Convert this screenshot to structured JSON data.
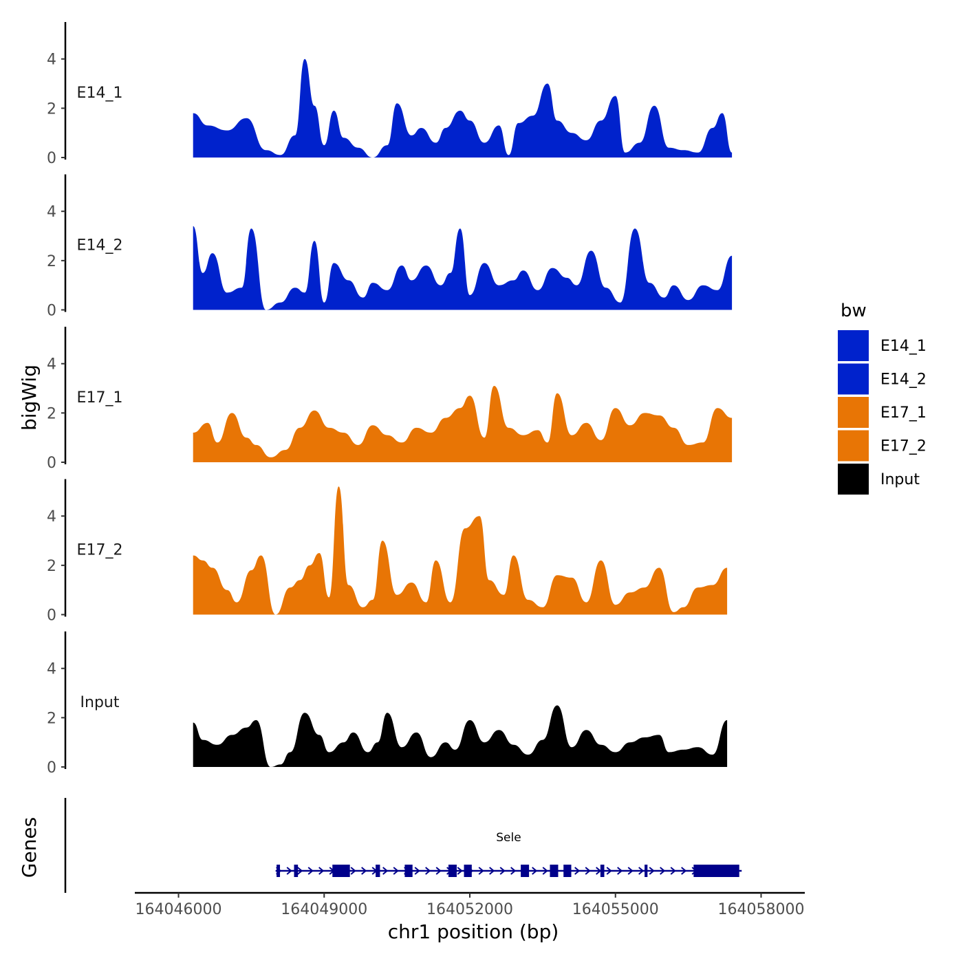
{
  "chart_data": {
    "type": "area",
    "ylabel": "bigWig",
    "xlabel": "chr1 position (bp)",
    "genes_label": "Genes",
    "xlim": [
      164045100,
      164058900
    ],
    "x_ticks": [
      164046000,
      164049000,
      164052000,
      164055000,
      164058000
    ],
    "x_tick_labels": [
      "164046000",
      "164049000",
      "164052000",
      "164055000",
      "164058000"
    ],
    "ylim": [
      0,
      5.5
    ],
    "y_ticks": [
      0,
      2,
      4
    ],
    "y_tick_labels": [
      "0",
      "2",
      "4"
    ],
    "legend": {
      "title": "bw",
      "entries": [
        {
          "label": "E14_1",
          "color": "#0022cc"
        },
        {
          "label": "E14_2",
          "color": "#0022cc"
        },
        {
          "label": "E17_1",
          "color": "#e87505"
        },
        {
          "label": "E17_2",
          "color": "#e87505"
        },
        {
          "label": "Input",
          "color": "#000000"
        }
      ]
    },
    "series": [
      {
        "name": "E14_1",
        "color": "#0022cc",
        "x": [
          164046300,
          164046600,
          164047000,
          164047400,
          164047800,
          164048100,
          164048400,
          164048600,
          164048800,
          164049000,
          164049200,
          164049400,
          164049700,
          164050000,
          164050300,
          164050500,
          164050800,
          164051000,
          164051300,
          164051500,
          164051800,
          164052000,
          164052300,
          164052600,
          164052800,
          164053000,
          164053300,
          164053600,
          164053800,
          164054100,
          164054400,
          164054700,
          164055000,
          164055200,
          164055500,
          164055800,
          164056100,
          164056400,
          164056700,
          164057000,
          164057200,
          164057400
        ],
        "values": [
          1.8,
          1.3,
          1.1,
          1.6,
          0.3,
          0.1,
          0.9,
          4.0,
          2.1,
          0.5,
          1.9,
          0.8,
          0.4,
          0.0,
          0.5,
          2.2,
          0.9,
          1.2,
          0.6,
          1.2,
          1.9,
          1.5,
          0.6,
          1.3,
          0.1,
          1.4,
          1.7,
          3.0,
          1.5,
          1.0,
          0.7,
          1.5,
          2.5,
          0.2,
          0.6,
          2.1,
          0.4,
          0.3,
          0.2,
          1.2,
          1.8,
          0.2
        ]
      },
      {
        "name": "E14_2",
        "color": "#0022cc",
        "x": [
          164046300,
          164046500,
          164046700,
          164047000,
          164047300,
          164047500,
          164047800,
          164048100,
          164048400,
          164048600,
          164048800,
          164049000,
          164049200,
          164049500,
          164049800,
          164050000,
          164050300,
          164050600,
          164050800,
          164051100,
          164051400,
          164051600,
          164051800,
          164052000,
          164052300,
          164052600,
          164052900,
          164053100,
          164053400,
          164053700,
          164054000,
          164054200,
          164054500,
          164054800,
          164055100,
          164055400,
          164055700,
          164056000,
          164056200,
          164056500,
          164056800,
          164057100,
          164057400
        ],
        "values": [
          3.4,
          1.5,
          2.3,
          0.7,
          0.9,
          3.3,
          0.0,
          0.3,
          0.9,
          0.7,
          2.8,
          0.3,
          1.9,
          1.2,
          0.5,
          1.1,
          0.8,
          1.8,
          1.2,
          1.8,
          1.0,
          1.5,
          3.3,
          0.6,
          1.9,
          1.0,
          1.2,
          1.6,
          0.8,
          1.7,
          1.3,
          1.0,
          2.4,
          0.9,
          0.3,
          3.3,
          1.1,
          0.5,
          1.0,
          0.4,
          1.0,
          0.8,
          2.2
        ]
      },
      {
        "name": "E17_1",
        "color": "#e87505",
        "x": [
          164046300,
          164046600,
          164046800,
          164047100,
          164047400,
          164047600,
          164047900,
          164048200,
          164048500,
          164048800,
          164049100,
          164049400,
          164049700,
          164050000,
          164050300,
          164050600,
          164050900,
          164051200,
          164051500,
          164051800,
          164052000,
          164052300,
          164052500,
          164052800,
          164053100,
          164053400,
          164053600,
          164053800,
          164054100,
          164054400,
          164054700,
          164055000,
          164055300,
          164055600,
          164055900,
          164056200,
          164056500,
          164056800,
          164057100,
          164057400
        ],
        "values": [
          1.2,
          1.6,
          0.8,
          2.0,
          1.0,
          0.7,
          0.2,
          0.5,
          1.4,
          2.1,
          1.4,
          1.2,
          0.7,
          1.5,
          1.1,
          0.8,
          1.4,
          1.2,
          1.8,
          2.2,
          2.7,
          1.0,
          3.1,
          1.4,
          1.1,
          1.3,
          0.8,
          2.8,
          1.1,
          1.6,
          0.9,
          2.2,
          1.5,
          2.0,
          1.9,
          1.4,
          0.7,
          0.8,
          2.2,
          1.8
        ]
      },
      {
        "name": "E17_2",
        "color": "#e87505",
        "x": [
          164046300,
          164046500,
          164046700,
          164047000,
          164047200,
          164047500,
          164047700,
          164048000,
          164048300,
          164048500,
          164048700,
          164048900,
          164049100,
          164049300,
          164049500,
          164049800,
          164050000,
          164050200,
          164050500,
          164050800,
          164051100,
          164051300,
          164051600,
          164051900,
          164052200,
          164052400,
          164052700,
          164052900,
          164053200,
          164053500,
          164053800,
          164054100,
          164054400,
          164054700,
          164055000,
          164055300,
          164055600,
          164055900,
          164056200,
          164056400,
          164056700,
          164057000,
          164057300
        ],
        "values": [
          2.4,
          2.2,
          1.9,
          1.0,
          0.5,
          1.8,
          2.4,
          0.0,
          1.1,
          1.4,
          2.0,
          2.5,
          0.7,
          5.2,
          1.2,
          0.3,
          0.6,
          3.0,
          0.8,
          1.3,
          0.5,
          2.2,
          0.5,
          3.5,
          4.0,
          1.4,
          0.8,
          2.4,
          0.6,
          0.3,
          1.6,
          1.5,
          0.5,
          2.2,
          0.4,
          0.9,
          1.1,
          1.9,
          0.1,
          0.3,
          1.1,
          1.2,
          1.9
        ]
      },
      {
        "name": "Input",
        "color": "#000000",
        "x": [
          164046300,
          164046500,
          164046800,
          164047100,
          164047400,
          164047600,
          164047900,
          164048100,
          164048300,
          164048600,
          164048900,
          164049100,
          164049400,
          164049600,
          164049900,
          164050100,
          164050300,
          164050600,
          164050900,
          164051200,
          164051500,
          164051700,
          164052000,
          164052300,
          164052600,
          164052900,
          164053200,
          164053500,
          164053800,
          164054100,
          164054400,
          164054700,
          164055000,
          164055300,
          164055600,
          164055900,
          164056100,
          164056400,
          164056700,
          164057000,
          164057300
        ],
        "values": [
          1.8,
          1.1,
          0.9,
          1.3,
          1.6,
          1.9,
          0.0,
          0.1,
          0.6,
          2.2,
          1.3,
          0.6,
          1.0,
          1.4,
          0.6,
          1.0,
          2.2,
          0.8,
          1.4,
          0.4,
          1.0,
          0.7,
          1.9,
          1.0,
          1.5,
          0.9,
          0.5,
          1.1,
          2.5,
          0.8,
          1.5,
          0.9,
          0.6,
          1.0,
          1.2,
          1.3,
          0.6,
          0.7,
          0.8,
          0.5,
          1.9
        ]
      }
    ],
    "gene": {
      "name": "Sele",
      "color": "#00008b",
      "start": 164048000,
      "end": 164057600,
      "strand": "+",
      "exons": [
        {
          "start": 164048020,
          "end": 164048090
        },
        {
          "start": 164048380,
          "end": 164048460
        },
        {
          "start": 164049170,
          "end": 164049530
        },
        {
          "start": 164050060,
          "end": 164050150
        },
        {
          "start": 164050660,
          "end": 164050820
        },
        {
          "start": 164051560,
          "end": 164051730
        },
        {
          "start": 164051880,
          "end": 164052040
        },
        {
          "start": 164053050,
          "end": 164053220
        },
        {
          "start": 164053650,
          "end": 164053820
        },
        {
          "start": 164053930,
          "end": 164054090
        },
        {
          "start": 164054690,
          "end": 164054770
        },
        {
          "start": 164055600,
          "end": 164055660
        },
        {
          "start": 164056610,
          "end": 164057550
        }
      ]
    }
  }
}
